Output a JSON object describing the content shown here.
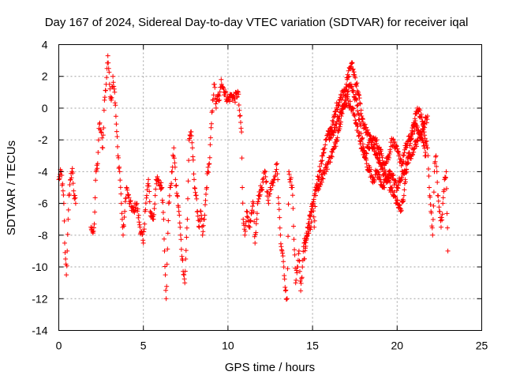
{
  "chart_data": {
    "type": "scatter",
    "title": "Day 167 of 2024, Sidereal Day-to-day VTEC variation (SDTVAR) for receiver iqal",
    "xlabel": "GPS time / hours",
    "ylabel": "SDTVAR / TECUs",
    "xlim": [
      0,
      25
    ],
    "ylim": [
      -14,
      4
    ],
    "xticks": [
      0,
      5,
      10,
      15,
      20,
      25
    ],
    "yticks": [
      -14,
      -12,
      -10,
      -8,
      -6,
      -4,
      -2,
      0,
      2,
      4
    ],
    "grid": true,
    "marker": "+",
    "color": "#ff0000",
    "series": [
      {
        "name": "SDTVAR",
        "anchors": [
          [
            0.0,
            -4.5
          ],
          [
            0.15,
            -4.0
          ],
          [
            0.3,
            -6.0
          ],
          [
            0.35,
            -8.5
          ],
          [
            0.4,
            -9.5
          ],
          [
            0.45,
            -10.5
          ],
          [
            0.5,
            -9.0
          ],
          [
            0.55,
            -7.0
          ],
          [
            0.6,
            -5.5
          ],
          [
            0.7,
            -4.5
          ],
          [
            0.8,
            -3.8
          ],
          [
            0.9,
            -5.5
          ],
          [
            1.0,
            -6.0
          ],
          [
            1.9,
            -7.5
          ],
          [
            2.0,
            -7.8
          ],
          [
            2.1,
            -7.3
          ],
          [
            2.2,
            -4.0
          ],
          [
            2.3,
            -3.5
          ],
          [
            2.35,
            -2.0
          ],
          [
            2.4,
            -1.0
          ],
          [
            2.5,
            -1.5
          ],
          [
            2.6,
            -2.5
          ],
          [
            2.7,
            0.5
          ],
          [
            2.8,
            1.5
          ],
          [
            2.85,
            2.5
          ],
          [
            2.9,
            3.3
          ],
          [
            2.95,
            2.5
          ],
          [
            3.0,
            1.5
          ],
          [
            3.1,
            0.5
          ],
          [
            3.2,
            2.0
          ],
          [
            3.3,
            1.0
          ],
          [
            3.4,
            -1.0
          ],
          [
            3.5,
            -3.0
          ],
          [
            3.6,
            -4.0
          ],
          [
            3.7,
            -6.0
          ],
          [
            3.75,
            -7.0
          ],
          [
            3.8,
            -8.0
          ],
          [
            3.9,
            -6.5
          ],
          [
            4.0,
            -5.0
          ],
          [
            4.1,
            -5.5
          ],
          [
            4.2,
            -6.0
          ],
          [
            4.4,
            -6.5
          ],
          [
            4.6,
            -6.0
          ],
          [
            4.8,
            -7.5
          ],
          [
            5.0,
            -8.5
          ],
          [
            5.1,
            -6.5
          ],
          [
            5.2,
            -5.5
          ],
          [
            5.3,
            -4.5
          ],
          [
            5.4,
            -6.5
          ],
          [
            5.6,
            -7.0
          ],
          [
            5.7,
            -5.5
          ],
          [
            5.75,
            -4.5
          ],
          [
            6.1,
            -5.0
          ],
          [
            6.2,
            -7.0
          ],
          [
            6.25,
            -9.0
          ],
          [
            6.3,
            -10.5
          ],
          [
            6.35,
            -12.0
          ],
          [
            6.5,
            -6.0
          ],
          [
            6.6,
            -5.0
          ],
          [
            6.7,
            -4.0
          ],
          [
            6.8,
            -2.5
          ],
          [
            6.9,
            -4.5
          ],
          [
            7.0,
            -5.5
          ],
          [
            7.1,
            -6.5
          ],
          [
            7.2,
            -8.0
          ],
          [
            7.3,
            -9.5
          ],
          [
            7.4,
            -10.5
          ],
          [
            7.45,
            -11.0
          ],
          [
            7.5,
            -9.5
          ],
          [
            7.6,
            -7.0
          ],
          [
            7.7,
            -2.0
          ],
          [
            7.8,
            -1.5
          ],
          [
            7.9,
            -2.5
          ],
          [
            8.0,
            -4.5
          ],
          [
            8.1,
            -5.5
          ],
          [
            8.2,
            -6.5
          ],
          [
            8.3,
            -7.5
          ],
          [
            8.4,
            -6.5
          ],
          [
            8.5,
            -8.0
          ],
          [
            8.6,
            -7.0
          ],
          [
            8.8,
            -4.0
          ],
          [
            8.9,
            -3.5
          ],
          [
            9.1,
            0.5
          ],
          [
            9.2,
            1.5
          ],
          [
            9.3,
            0.0
          ],
          [
            9.4,
            0.8
          ],
          [
            9.5,
            0.5
          ],
          [
            9.6,
            1.8
          ],
          [
            9.8,
            1.0
          ],
          [
            10.0,
            0.5
          ],
          [
            10.2,
            0.8
          ],
          [
            10.4,
            0.6
          ],
          [
            10.6,
            1.0
          ],
          [
            10.7,
            -0.5
          ],
          [
            10.8,
            -1.5
          ],
          [
            10.85,
            -5.0
          ],
          [
            10.9,
            -7.0
          ],
          [
            11.0,
            -8.0
          ],
          [
            11.1,
            -6.5
          ],
          [
            11.3,
            -7.5
          ],
          [
            11.5,
            -6.0
          ],
          [
            11.6,
            -8.5
          ],
          [
            11.7,
            -7.0
          ],
          [
            11.8,
            -5.5
          ],
          [
            12.0,
            -5.0
          ],
          [
            12.2,
            -4.0
          ],
          [
            12.4,
            -6.0
          ],
          [
            12.5,
            -5.0
          ],
          [
            12.7,
            -4.5
          ],
          [
            12.9,
            -3.5
          ],
          [
            13.0,
            -6.0
          ],
          [
            13.1,
            -8.0
          ],
          [
            13.2,
            -9.0
          ],
          [
            13.3,
            -10.0
          ],
          [
            13.4,
            -11.5
          ],
          [
            13.5,
            -12.0
          ],
          [
            13.6,
            -4.0
          ],
          [
            13.7,
            -4.5
          ],
          [
            13.8,
            -5.0
          ],
          [
            14.0,
            -11.0
          ],
          [
            14.1,
            -10.0
          ],
          [
            14.2,
            -9.0
          ],
          [
            14.3,
            -11.5
          ],
          [
            14.4,
            -10.0
          ],
          [
            14.5,
            -8.5
          ],
          [
            14.7,
            -8.0
          ],
          [
            14.9,
            -7.5
          ],
          [
            15.0,
            -6.0
          ],
          [
            15.1,
            -7.5
          ],
          [
            15.2,
            -5.0
          ],
          [
            15.4,
            -4.0
          ],
          [
            15.6,
            -3.0
          ],
          [
            15.8,
            -2.0
          ],
          [
            16.0,
            -1.5
          ],
          [
            16.2,
            -1.0
          ],
          [
            16.4,
            0.0
          ],
          [
            16.6,
            0.5
          ],
          [
            16.8,
            1.0
          ],
          [
            17.0,
            1.5
          ],
          [
            17.2,
            2.5
          ],
          [
            17.3,
            2.8
          ],
          [
            17.5,
            2.0
          ],
          [
            17.7,
            1.0
          ],
          [
            17.9,
            -0.5
          ],
          [
            18.0,
            -1.0
          ],
          [
            18.2,
            -1.5
          ],
          [
            18.4,
            -2.0
          ],
          [
            18.6,
            -2.5
          ],
          [
            18.8,
            -3.0
          ],
          [
            19.0,
            -3.5
          ],
          [
            19.2,
            -4.0
          ],
          [
            19.4,
            -4.5
          ],
          [
            19.6,
            -5.0
          ],
          [
            19.8,
            -5.5
          ],
          [
            20.0,
            -6.0
          ],
          [
            20.2,
            -6.5
          ],
          [
            20.4,
            -5.5
          ],
          [
            20.6,
            -3.5
          ],
          [
            20.8,
            -2.0
          ],
          [
            21.0,
            -1.0
          ],
          [
            21.2,
            0.0
          ],
          [
            21.4,
            -0.5
          ],
          [
            21.6,
            -1.5
          ],
          [
            21.8,
            -2.5
          ],
          [
            21.9,
            -5.0
          ],
          [
            22.0,
            -6.5
          ],
          [
            22.1,
            -8.0
          ],
          [
            22.2,
            -4.0
          ],
          [
            22.3,
            -3.0
          ],
          [
            22.4,
            -5.5
          ],
          [
            22.5,
            -6.5
          ],
          [
            22.6,
            -7.5
          ],
          [
            22.7,
            -6.0
          ],
          [
            22.8,
            -4.5
          ],
          [
            22.9,
            -4.0
          ],
          [
            23.0,
            -9.0
          ],
          [
            14.5,
            -9.5
          ],
          [
            14.7,
            -7.5
          ],
          [
            14.9,
            -6.5
          ],
          [
            15.1,
            -5.5
          ],
          [
            15.3,
            -5.0
          ],
          [
            15.5,
            -4.5
          ],
          [
            15.7,
            -4.0
          ],
          [
            15.9,
            -3.5
          ],
          [
            16.1,
            -3.0
          ],
          [
            16.3,
            -2.5
          ],
          [
            16.5,
            -1.5
          ],
          [
            16.7,
            -0.5
          ],
          [
            16.9,
            0.3
          ],
          [
            17.1,
            0.5
          ],
          [
            17.3,
            0.0
          ],
          [
            17.5,
            -0.5
          ],
          [
            17.7,
            -1.5
          ],
          [
            17.9,
            -2.5
          ],
          [
            18.1,
            -3.0
          ],
          [
            18.3,
            -2.5
          ],
          [
            18.5,
            -2.0
          ],
          [
            18.7,
            -2.0
          ],
          [
            18.9,
            -2.5
          ],
          [
            19.1,
            -3.0
          ],
          [
            19.3,
            -3.5
          ],
          [
            19.5,
            -3.0
          ],
          [
            19.7,
            -2.0
          ],
          [
            19.9,
            -2.5
          ],
          [
            20.1,
            -3.0
          ],
          [
            20.3,
            -3.5
          ],
          [
            20.5,
            -2.5
          ],
          [
            20.7,
            -2.0
          ],
          [
            20.9,
            -1.5
          ],
          [
            21.1,
            -1.0
          ],
          [
            21.3,
            -1.5
          ],
          [
            21.5,
            -2.0
          ],
          [
            21.7,
            -3.0
          ],
          [
            16.0,
            -2.0
          ],
          [
            16.2,
            -1.5
          ],
          [
            16.4,
            -1.0
          ],
          [
            16.6,
            -0.5
          ],
          [
            16.8,
            0.0
          ],
          [
            17.0,
            0.8
          ],
          [
            17.2,
            1.5
          ],
          [
            17.4,
            1.0
          ],
          [
            17.6,
            0.5
          ],
          [
            17.8,
            -1.0
          ],
          [
            18.0,
            -2.5
          ],
          [
            18.2,
            -3.5
          ],
          [
            18.4,
            -4.0
          ],
          [
            18.6,
            -4.5
          ],
          [
            18.8,
            -4.0
          ],
          [
            19.0,
            -4.5
          ],
          [
            19.2,
            -5.0
          ],
          [
            19.4,
            -4.5
          ],
          [
            19.6,
            -4.0
          ],
          [
            19.8,
            -4.5
          ],
          [
            20.0,
            -5.0
          ],
          [
            20.2,
            -4.5
          ],
          [
            20.4,
            -4.0
          ],
          [
            20.6,
            -3.5
          ],
          [
            20.8,
            -3.0
          ],
          [
            21.0,
            -2.5
          ],
          [
            21.2,
            -2.0
          ],
          [
            21.4,
            -1.5
          ],
          [
            21.6,
            -1.0
          ],
          [
            21.8,
            -0.5
          ]
        ]
      }
    ]
  }
}
